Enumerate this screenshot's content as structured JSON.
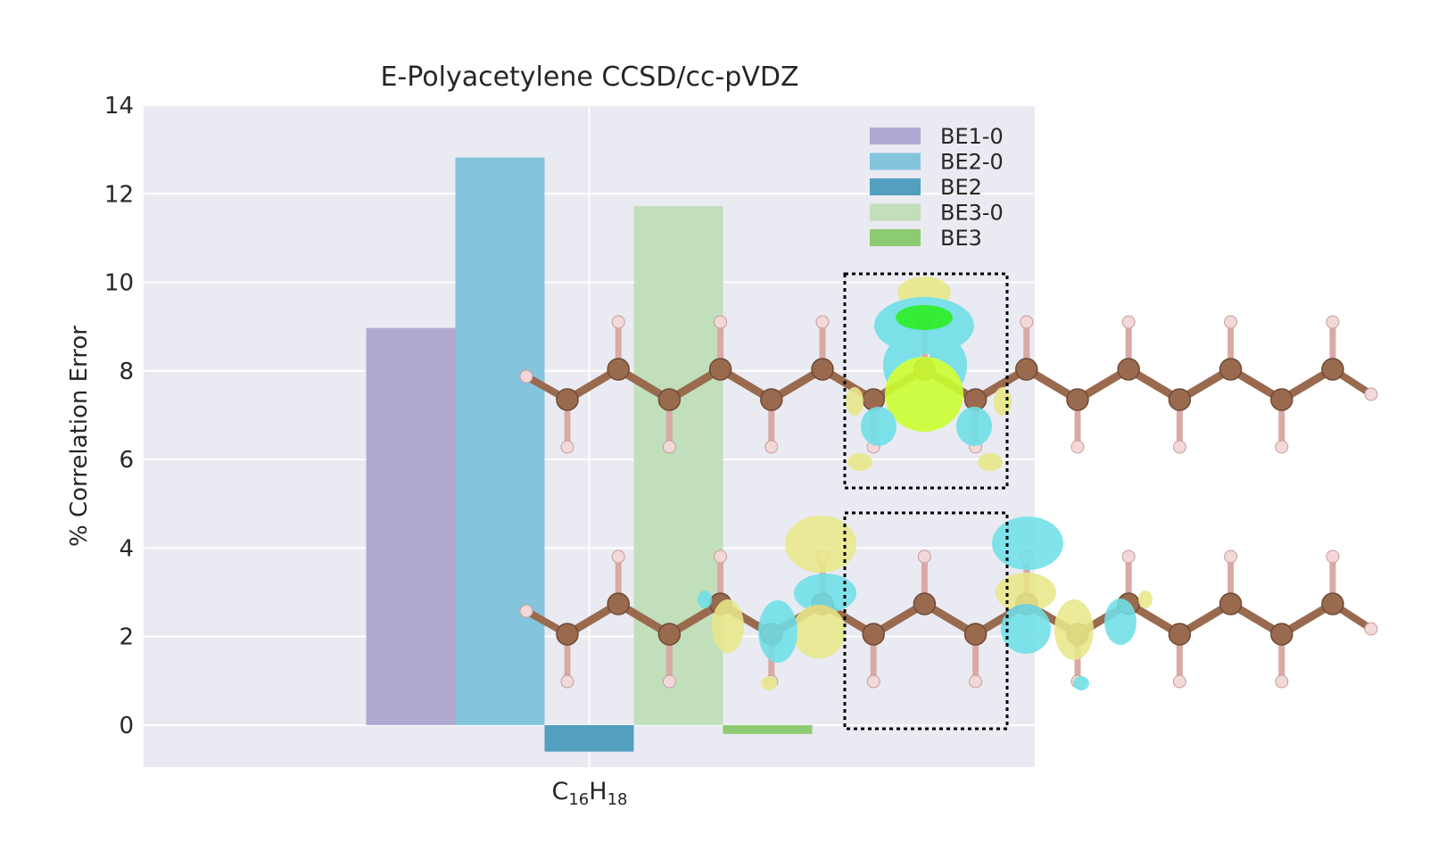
{
  "chart_data": {
    "type": "bar",
    "title": "E-Polyacetylene CCSD/cc-pVDZ",
    "ylabel": "% Correlation Error",
    "xlabel": "",
    "categories": [
      "C16H18"
    ],
    "category_label": {
      "base": "C",
      "sub1": "16",
      "mid": "H",
      "sub2": "18"
    },
    "ylim": [
      -0.95,
      14
    ],
    "yticks": [
      0,
      2,
      4,
      6,
      8,
      10,
      12,
      14
    ],
    "grid": true,
    "legend_position": "top-right",
    "series": [
      {
        "name": "BE1-0",
        "values": [
          8.97
        ],
        "color": "#b0a8d0"
      },
      {
        "name": "BE2-0",
        "values": [
          12.82
        ],
        "color": "#84c4dd"
      },
      {
        "name": "BE2",
        "values": [
          -0.6
        ],
        "color": "#529fbf"
      },
      {
        "name": "BE3-0",
        "values": [
          11.72
        ],
        "color": "#c1dfbb"
      },
      {
        "name": "BE3",
        "values": [
          -0.2
        ],
        "color": "#8ccb71"
      }
    ]
  },
  "colors": {
    "plot_background": "#eaeaf2",
    "grid": "#ffffff",
    "carbon_atom": "#9a6a4f",
    "hydrogen_atom": "#f2d8d8",
    "orbital_cyan": "#6fe0e8",
    "orbital_yellow": "#e8e88a",
    "orbital_green": "#ccff33"
  }
}
